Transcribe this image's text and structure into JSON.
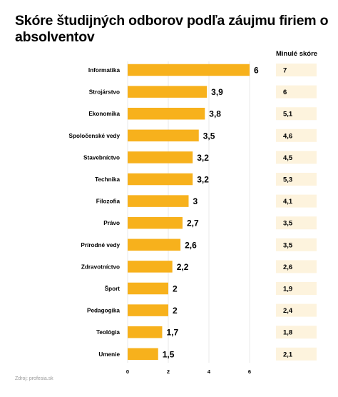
{
  "chart_data": {
    "type": "bar",
    "orientation": "horizontal",
    "title": "Skóre študijných odborov podľa záujmu firiem o absolventov",
    "categories": [
      "Informatika",
      "Strojárstvo",
      "Ekonomika",
      "Spoločenské vedy",
      "Stavebníctvo",
      "Technika",
      "Filozofia",
      "Právo",
      "Prírodné vedy",
      "Zdravotníctvo",
      "Šport",
      "Pedagogika",
      "Teológia",
      "Umenie"
    ],
    "values": [
      6,
      3.9,
      3.8,
      3.5,
      3.2,
      3.2,
      3,
      2.7,
      2.6,
      2.2,
      2,
      2,
      1.7,
      1.5
    ],
    "value_labels": [
      "6",
      "3,9",
      "3,8",
      "3,5",
      "3,2",
      "3,2",
      "3",
      "2,7",
      "2,6",
      "2,2",
      "2",
      "2",
      "1,7",
      "1,5"
    ],
    "previous_header": "Minulé skóre",
    "previous_values": [
      "7",
      "6",
      "5,1",
      "4,6",
      "4,5",
      "5,3",
      "4,1",
      "3,5",
      "3,5",
      "2,6",
      "1,9",
      "2,4",
      "1,8",
      "2,1"
    ],
    "xlim": [
      0,
      6
    ],
    "xticks": [
      "0",
      "2",
      "4",
      "6"
    ],
    "grid": true,
    "bar_color": "#f7b11c",
    "prev_box_color": "#fdf3dd",
    "grid_color": "#e8e8e8"
  },
  "source": "Zdroj: profesia.sk"
}
